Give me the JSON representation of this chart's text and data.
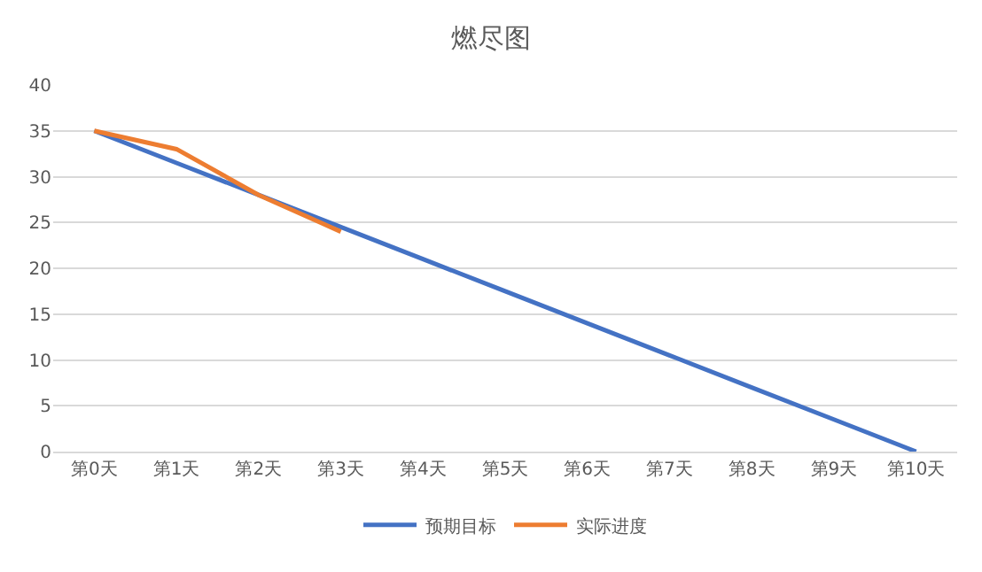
{
  "chart_data": {
    "type": "line",
    "title": "燃尽图",
    "categories": [
      "第0天",
      "第1天",
      "第2天",
      "第3天",
      "第4天",
      "第5天",
      "第6天",
      "第7天",
      "第8天",
      "第9天",
      "第10天"
    ],
    "series": [
      {
        "name": "预期目标",
        "color": "#4472c4",
        "values": [
          35,
          31.5,
          28,
          24.5,
          21,
          17.5,
          14,
          10.5,
          7,
          3.5,
          0
        ]
      },
      {
        "name": "实际进度",
        "color": "#ed7d31",
        "values": [
          35,
          33,
          28,
          24,
          null,
          null,
          null,
          null,
          null,
          null,
          null
        ]
      }
    ],
    "ylim": [
      0,
      40
    ],
    "yticks": [
      0,
      5,
      10,
      15,
      20,
      25,
      30,
      35,
      40
    ],
    "grid": "y",
    "legend": "bottom",
    "marker": "none",
    "line_style": "solid"
  }
}
